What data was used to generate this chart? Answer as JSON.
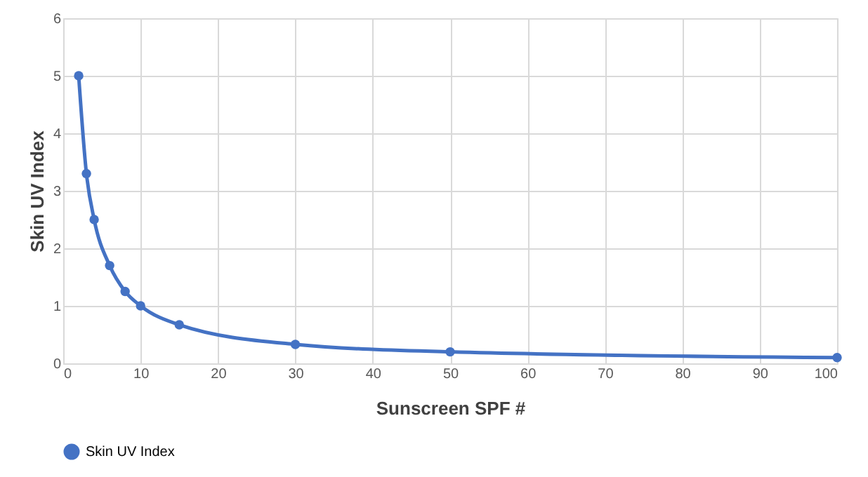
{
  "chart_data": {
    "type": "line",
    "xlabel": "Sunscreen SPF #",
    "ylabel": "Skin UV Index",
    "x": [
      2,
      3,
      4,
      6,
      8,
      10,
      15,
      30,
      50,
      100
    ],
    "series": [
      {
        "name": "Skin UV Index",
        "color": "#4472c4",
        "values": [
          5,
          3.3,
          2.5,
          1.7,
          1.25,
          1,
          0.67,
          0.33,
          0.2,
          0.1
        ]
      }
    ],
    "xlim": [
      0,
      100
    ],
    "xticks": [
      0,
      10,
      20,
      30,
      40,
      50,
      60,
      70,
      80,
      90,
      100
    ],
    "ylim": [
      0,
      6
    ],
    "yticks": [
      0,
      1,
      2,
      3,
      4,
      5,
      6
    ],
    "grid": true,
    "legend": "bottom",
    "marker": "circle",
    "line_style": "solid"
  }
}
